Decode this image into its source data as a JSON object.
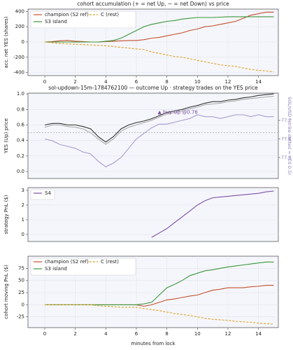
{
  "chart_data": [
    {
      "type": "line",
      "title": "cohort accumulation (+ = net Up, − = net Down) vs price",
      "ylabel": "acc. net YES (shares)",
      "x": [
        0,
        0.5,
        1,
        1.5,
        2,
        2.5,
        3,
        3.5,
        4,
        4.5,
        5,
        5.5,
        6,
        6.5,
        7,
        7.5,
        8,
        8.5,
        9,
        9.5,
        10,
        10.5,
        11,
        11.5,
        12,
        12.5,
        13,
        13.5,
        14,
        14.5,
        15
      ],
      "xlim": [
        -1.1,
        15.3
      ],
      "ylim": [
        -440,
        430
      ],
      "xticks": [
        0,
        2,
        4,
        6,
        8,
        10,
        12,
        14
      ],
      "yticks": [
        -400,
        -200,
        0,
        200,
        400
      ],
      "grid": true,
      "legend": "upper left",
      "series": [
        {
          "name": "champion (S2 ref)",
          "color": "#c4502a",
          "linestyle": "solid",
          "values": [
            0,
            5,
            15,
            20,
            10,
            5,
            0,
            0,
            5,
            10,
            15,
            20,
            20,
            30,
            50,
            60,
            80,
            100,
            120,
            150,
            170,
            200,
            210,
            230,
            250,
            270,
            310,
            350,
            370,
            390,
            390
          ]
        },
        {
          "name": "S3 island",
          "color": "#3a963a",
          "linestyle": "solid",
          "values": [
            0,
            0,
            0,
            0,
            0,
            0,
            0,
            0,
            10,
            20,
            50,
            100,
            150,
            200,
            230,
            250,
            270,
            280,
            300,
            310,
            320,
            320,
            320,
            325,
            330,
            330,
            330,
            330,
            330,
            330,
            330
          ]
        },
        {
          "name": "C (rest)",
          "color": "#e0a020",
          "linestyle": "dashed",
          "values": [
            0,
            -10,
            -20,
            -25,
            -30,
            -35,
            -40,
            -45,
            -50,
            -60,
            -70,
            -80,
            -90,
            -100,
            -130,
            -150,
            -170,
            -190,
            -200,
            -220,
            -240,
            -260,
            -280,
            -300,
            -310,
            -320,
            -340,
            -360,
            -370,
            -380,
            -390
          ]
        }
      ]
    },
    {
      "type": "line",
      "title": "sol-updown-15m-1784762100 — outcome Up · strategy trades on the YES price",
      "ylabel": "YES (Up) price",
      "y2label": "SOL/USD (strike dotted = YES 0.5)",
      "x": [
        0,
        0.5,
        1,
        1.5,
        2,
        2.5,
        3,
        3.5,
        4,
        4.5,
        5,
        5.5,
        6,
        6.5,
        7,
        7.5,
        8,
        8.5,
        9,
        9.5,
        10,
        10.5,
        11,
        11.5,
        12,
        12.5,
        13,
        13.5,
        14,
        14.5,
        15
      ],
      "xlim": [
        -1.1,
        15.3
      ],
      "ylim": [
        -0.09,
        1.01
      ],
      "yticks": [
        {
          "value": 0,
          "label": "0.0"
        },
        0.2,
        0.4,
        0.6,
        0.8,
        {
          "value": 1,
          "label": "1.0"
        }
      ],
      "y2lim": [
        77.387,
        77.847
      ],
      "y2ticks": [
        77.5,
        77.6,
        77.7
      ],
      "hline": 0.5,
      "grid": true,
      "annotations": [
        {
          "text": "▲ buy Up @0.76",
          "x": 7.4,
          "y": 0.76,
          "color": "#7b4fa8"
        }
      ],
      "series": [
        {
          "color": "#aaaaaa",
          "values": [
            0.57,
            0.6,
            0.6,
            0.58,
            0.57,
            0.55,
            0.5,
            0.42,
            0.35,
            0.42,
            0.52,
            0.57,
            0.6,
            0.63,
            0.66,
            0.7,
            0.74,
            0.76,
            0.78,
            0.81,
            0.83,
            0.86,
            0.87,
            0.88,
            0.9,
            0.91,
            0.93,
            0.94,
            0.95,
            0.96,
            0.97
          ]
        },
        {
          "color": "#333333",
          "values": [
            0.6,
            0.62,
            0.62,
            0.6,
            0.6,
            0.58,
            0.55,
            0.45,
            0.38,
            0.45,
            0.55,
            0.6,
            0.63,
            0.65,
            0.68,
            0.72,
            0.76,
            0.78,
            0.8,
            0.83,
            0.85,
            0.88,
            0.9,
            0.9,
            0.92,
            0.93,
            0.95,
            0.96,
            0.98,
            0.99,
            1.0
          ]
        },
        {
          "color": "#a99bd0",
          "axis": "y2",
          "values": [
            77.6,
            77.59,
            77.57,
            77.56,
            77.55,
            77.53,
            77.52,
            77.48,
            77.45,
            77.47,
            77.5,
            77.55,
            77.6,
            77.63,
            77.66,
            77.68,
            77.68,
            77.69,
            77.7,
            77.71,
            77.73,
            77.72,
            77.72,
            77.71,
            77.72,
            77.73,
            77.73,
            77.72,
            77.73,
            77.72,
            77.72
          ]
        }
      ]
    },
    {
      "type": "line",
      "ylabel": "strategy PnL ($)",
      "x": [
        0,
        0.5,
        1,
        1.5,
        2,
        2.5,
        3,
        3.5,
        4,
        4.5,
        5,
        5.5,
        6,
        6.5,
        7,
        7.5,
        8,
        8.5,
        9,
        9.5,
        10,
        10.5,
        11,
        11.5,
        12,
        12.5,
        13,
        13.5,
        14,
        14.5,
        15
      ],
      "xlim": [
        -1.1,
        15.3
      ],
      "ylim": [
        -0.48,
        3.19
      ],
      "yticks": [
        0,
        1,
        2,
        3
      ],
      "grid": true,
      "legend": "upper left",
      "series": [
        {
          "name": "S4",
          "color": "#7b4fa8",
          "linestyle": "solid",
          "values": [
            null,
            null,
            null,
            null,
            null,
            null,
            null,
            null,
            null,
            null,
            null,
            null,
            null,
            null,
            -0.2,
            0.1,
            0.4,
            0.8,
            1.2,
            1.6,
            2.0,
            2.3,
            2.5,
            2.55,
            2.6,
            2.65,
            2.7,
            2.75,
            2.8,
            2.9,
            2.95
          ]
        }
      ]
    },
    {
      "type": "line",
      "ylabel": "cohort moving PnL ($)",
      "xlabel": "minutes from lock",
      "x": [
        0,
        0.5,
        1,
        1.5,
        2,
        2.5,
        3,
        3.5,
        4,
        4.5,
        5,
        5.5,
        6,
        6.5,
        7,
        7.5,
        8,
        8.5,
        9,
        9.5,
        10,
        10.5,
        11,
        11.5,
        12,
        12.5,
        13,
        13.5,
        14,
        14.5,
        15
      ],
      "xlim": [
        -1.1,
        15.3
      ],
      "ylim": [
        -47,
        100
      ],
      "xticks": [
        0,
        2,
        4,
        6,
        8,
        10,
        12,
        14
      ],
      "yticks": [
        -25,
        0,
        25,
        50,
        75
      ],
      "grid": true,
      "legend": "upper left",
      "series": [
        {
          "name": "champion (S2 ref)",
          "color": "#c4502a",
          "linestyle": "solid",
          "values": [
            0,
            0,
            0,
            0,
            0,
            0,
            0,
            0,
            0,
            0,
            0,
            0,
            0,
            -3,
            0,
            5,
            10,
            12,
            15,
            18,
            20,
            25,
            30,
            32,
            35,
            35,
            35,
            37,
            38,
            40,
            40
          ]
        },
        {
          "name": "S3 island",
          "color": "#3a963a",
          "linestyle": "solid",
          "values": [
            0,
            0,
            0,
            0,
            0,
            0,
            0,
            0,
            0,
            0,
            0,
            0,
            0,
            2,
            5,
            20,
            35,
            42,
            50,
            60,
            65,
            70,
            72,
            75,
            78,
            80,
            82,
            84,
            86,
            88,
            88
          ]
        },
        {
          "name": "C (rest)",
          "color": "#e0a020",
          "linestyle": "dashed",
          "values": [
            0,
            0,
            0,
            0,
            0,
            0,
            0,
            -2,
            -3,
            -4,
            -5,
            -5,
            -5,
            -8,
            -10,
            -12,
            -15,
            -18,
            -20,
            -22,
            -25,
            -28,
            -30,
            -31,
            -32,
            -34,
            -35,
            -36,
            -38,
            -39,
            -40
          ]
        }
      ]
    }
  ]
}
